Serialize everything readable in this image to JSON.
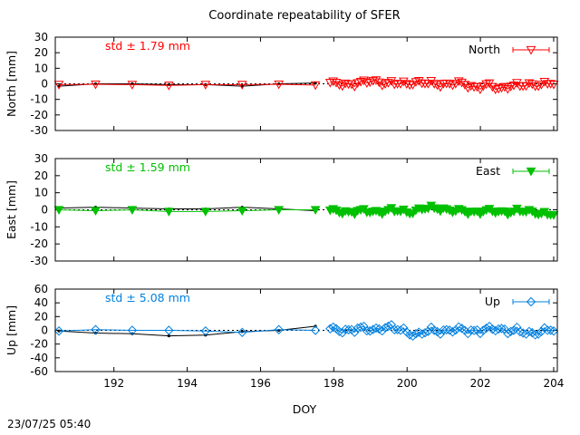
{
  "chart_data": {
    "type": "scatter",
    "title": "Coordinate repeatability of SFER",
    "xlabel": "DOY",
    "xlim": [
      190.4,
      204.1
    ],
    "xticks": [
      192,
      194,
      196,
      198,
      200,
      202,
      204
    ],
    "grid": false,
    "legend_placement": "top-right",
    "panels": [
      {
        "ylabel": "North [mm]",
        "ylim": [
          -30,
          30
        ],
        "yticks": [
          -30,
          -20,
          -10,
          0,
          10,
          20,
          30
        ],
        "std_label": "std ± 1.79 mm",
        "color": "#ff0000",
        "marker": "triangle-down-open",
        "series": {
          "name": "North"
        },
        "daily": {
          "x": [
            190.5,
            191.5,
            192.5,
            193.5,
            194.5,
            195.5,
            196.5,
            197.5
          ],
          "solution": [
            -1.5,
            0.0,
            0.0,
            -0.5,
            -0.5,
            -1.5,
            0.0,
            0.5
          ],
          "repeat": [
            -0.5,
            -0.3,
            -0.5,
            -1.0,
            -0.5,
            -0.5,
            -0.3,
            -0.8
          ]
        },
        "dense": {
          "x0": 197.9,
          "x1": 204.0,
          "n": 74,
          "base": 0.0,
          "amp": 2.0,
          "bumps": [
            [
              199.1,
              2.0
            ],
            [
              200.2,
              1.0
            ],
            [
              201.9,
              -2.0
            ],
            [
              202.5,
              -3.0
            ],
            [
              203.1,
              -1.5
            ]
          ]
        }
      },
      {
        "ylabel": "East [mm]",
        "ylim": [
          -30,
          30
        ],
        "yticks": [
          -30,
          -20,
          -10,
          0,
          10,
          20,
          30
        ],
        "std_label": "std ± 1.59 mm",
        "color": "#00c000",
        "marker": "triangle-down-filled",
        "series": {
          "name": "East"
        },
        "daily": {
          "x": [
            190.5,
            191.5,
            192.5,
            193.5,
            194.5,
            195.5,
            196.5,
            197.5
          ],
          "solution": [
            1.0,
            1.5,
            1.0,
            0.5,
            0.5,
            1.5,
            0.5,
            -0.5
          ],
          "repeat": [
            0.0,
            -0.5,
            0.0,
            -1.0,
            -1.0,
            -0.5,
            0.0,
            0.0
          ]
        },
        "dense": {
          "x0": 197.9,
          "x1": 204.0,
          "n": 74,
          "base": -1.0,
          "amp": 1.8,
          "bumps": [
            [
              199.5,
              0.5
            ],
            [
              200.5,
              1.5
            ],
            [
              200.9,
              2.0
            ],
            [
              203.9,
              -2.0
            ]
          ]
        }
      },
      {
        "ylabel": "Up [mm]",
        "ylim": [
          -60,
          60
        ],
        "yticks": [
          -60,
          -40,
          -20,
          0,
          20,
          40,
          60
        ],
        "std_label": "std ± 5.08 mm",
        "color": "#0080e0",
        "marker": "diamond-open",
        "series": {
          "name": "Up"
        },
        "daily": {
          "x": [
            190.5,
            191.5,
            192.5,
            193.5,
            194.5,
            195.5,
            196.5,
            197.5
          ],
          "solution": [
            -1.0,
            -4.0,
            -5.0,
            -8.0,
            -7.0,
            -2.0,
            0.0,
            6.0
          ],
          "repeat": [
            -1.0,
            1.0,
            0.0,
            0.0,
            -1.0,
            -3.0,
            1.0,
            0.0
          ]
        },
        "dense": {
          "x0": 197.9,
          "x1": 204.0,
          "n": 74,
          "base": 0.0,
          "amp": 5.5,
          "bumps": [
            [
              198.6,
              2.0
            ],
            [
              199.4,
              5.0
            ],
            [
              200.3,
              -6.0
            ],
            [
              202.5,
              2.0
            ],
            [
              203.3,
              -5.0
            ]
          ]
        }
      }
    ],
    "timestamp": "23/07/25 05:40"
  }
}
